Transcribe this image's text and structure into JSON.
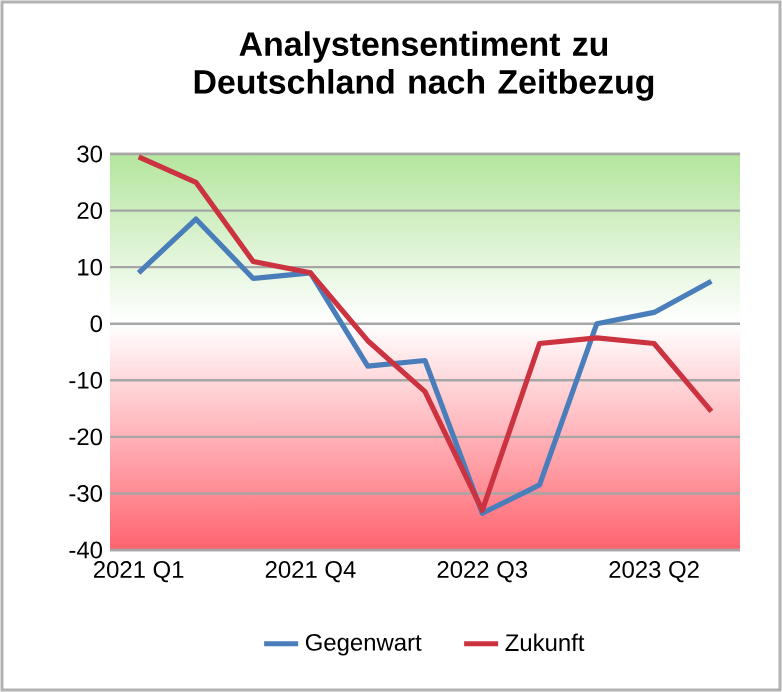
{
  "chart_data": {
    "type": "line",
    "title": "Analystensentiment zu Deutschland nach Zeitbezug",
    "categories": [
      "2021 Q1",
      null,
      null,
      "2021 Q4",
      null,
      null,
      "2022 Q3",
      null,
      null,
      "2023 Q2",
      null
    ],
    "series": [
      {
        "name": "Gegenwart",
        "color": "#4a7ebb",
        "values": [
          9,
          18.5,
          8,
          9,
          -7.5,
          -6.5,
          -33.5,
          -28.5,
          0,
          2,
          7.5
        ]
      },
      {
        "name": "Zukunft",
        "color": "#cc3340",
        "values": [
          29.5,
          25,
          11,
          9,
          -3,
          -12,
          -33,
          -3.5,
          -2.5,
          -3.5,
          -15.5
        ]
      }
    ],
    "ylim": [
      -40,
      30
    ],
    "yticks": [
      -40,
      -30,
      -20,
      -10,
      0,
      10,
      20,
      30
    ],
    "bands": [
      {
        "axis": "y",
        "from": 0,
        "to": 30,
        "color": "#b4e59e"
      },
      {
        "axis": "y",
        "from": -40,
        "to": 0,
        "color": "#ff6470"
      }
    ],
    "grid": "y",
    "legend": "bottom",
    "marker": "none",
    "line_style": "solid"
  }
}
